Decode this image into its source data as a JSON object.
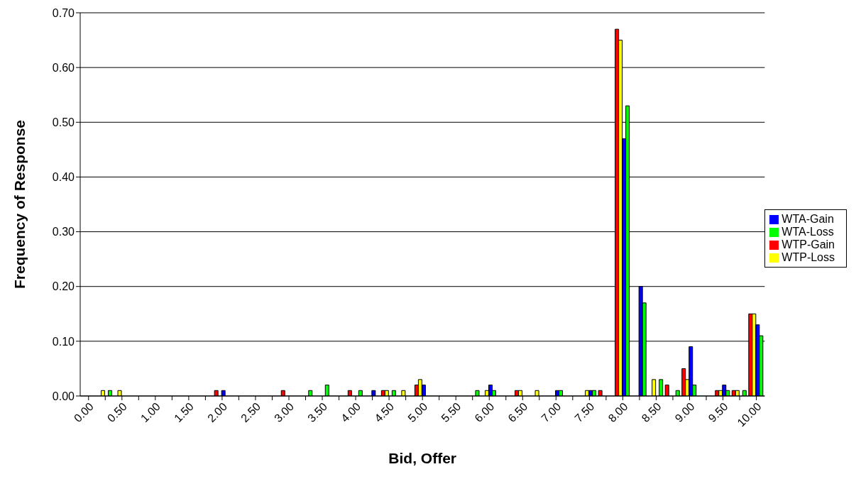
{
  "chart_data": {
    "type": "bar",
    "xlabel": "Bid, Offer",
    "ylabel": "Frequency of Response",
    "categories": [
      "0.00",
      null,
      "0.50",
      null,
      "1.00",
      null,
      "1.50",
      null,
      "2.00",
      null,
      "2.50",
      null,
      "3.00",
      null,
      "3.50",
      null,
      "4.00",
      null,
      "4.50",
      null,
      "5.00",
      null,
      "5.50",
      null,
      "6.00",
      null,
      "6.50",
      null,
      "7.00",
      null,
      "7.50",
      null,
      "8.00",
      null,
      "8.50",
      null,
      "9.00",
      null,
      "9.50",
      null,
      "10.00"
    ],
    "series": [
      {
        "name": "WTP-Gain",
        "color": "#ff0000",
        "values": [
          0,
          0,
          0,
          0,
          0,
          0,
          0,
          0,
          0.01,
          0,
          0,
          0,
          0.01,
          0,
          0,
          0,
          0.01,
          0,
          0.01,
          0,
          0.02,
          0,
          0,
          0,
          0,
          0,
          0.01,
          0,
          0,
          0,
          0,
          0.01,
          0.67,
          0,
          0,
          0.02,
          0.05,
          0,
          0.01,
          0.01,
          0.15
        ]
      },
      {
        "name": "WTP-Loss",
        "color": "#ffff00",
        "values": [
          0,
          0.01,
          0.01,
          0,
          0,
          0,
          0,
          0,
          0,
          0,
          0,
          0,
          0,
          0,
          0,
          0,
          0,
          0,
          0.01,
          0.01,
          0.03,
          0,
          0,
          0,
          0.01,
          0,
          0.01,
          0.01,
          0,
          0,
          0.01,
          0,
          0.65,
          0,
          0.03,
          0,
          0.03,
          0,
          0.01,
          0.01,
          0.15
        ]
      },
      {
        "name": "WTA-Gain",
        "color": "#0000ff",
        "values": [
          0,
          0,
          0,
          0,
          0,
          0,
          0,
          0,
          0.01,
          0,
          0,
          0,
          0,
          0,
          0,
          0,
          0,
          0.01,
          0,
          0,
          0.02,
          0,
          0,
          0,
          0.02,
          0,
          0,
          0,
          0.01,
          0,
          0.01,
          0,
          0.47,
          0.2,
          0,
          0,
          0.09,
          0,
          0.02,
          0,
          0.13
        ]
      },
      {
        "name": "WTA-Loss",
        "color": "#00ff00",
        "values": [
          0,
          0.01,
          0,
          0,
          0,
          0,
          0,
          0,
          0,
          0,
          0,
          0,
          0,
          0.01,
          0.02,
          0,
          0.01,
          0,
          0.01,
          0,
          0,
          0,
          0,
          0.01,
          0.01,
          0,
          0,
          0,
          0.01,
          0,
          0.01,
          0,
          0.53,
          0.17,
          0.03,
          0.01,
          0.02,
          0,
          0.01,
          0.01,
          0.11
        ]
      }
    ],
    "ylim": [
      0,
      0.7
    ],
    "yticks": [
      {
        "value": 0,
        "label": "0.00"
      },
      {
        "value": 0.1,
        "label": "0.10"
      },
      {
        "value": 0.2,
        "label": "0.20"
      },
      {
        "value": 0.3,
        "label": "0.30"
      },
      {
        "value": 0.4,
        "label": "0.40"
      },
      {
        "value": 0.5,
        "label": "0.50"
      },
      {
        "value": 0.6,
        "label": "0.60"
      },
      {
        "value": 0.7,
        "label": "0.70"
      }
    ],
    "grid": "y",
    "legend": "right"
  }
}
